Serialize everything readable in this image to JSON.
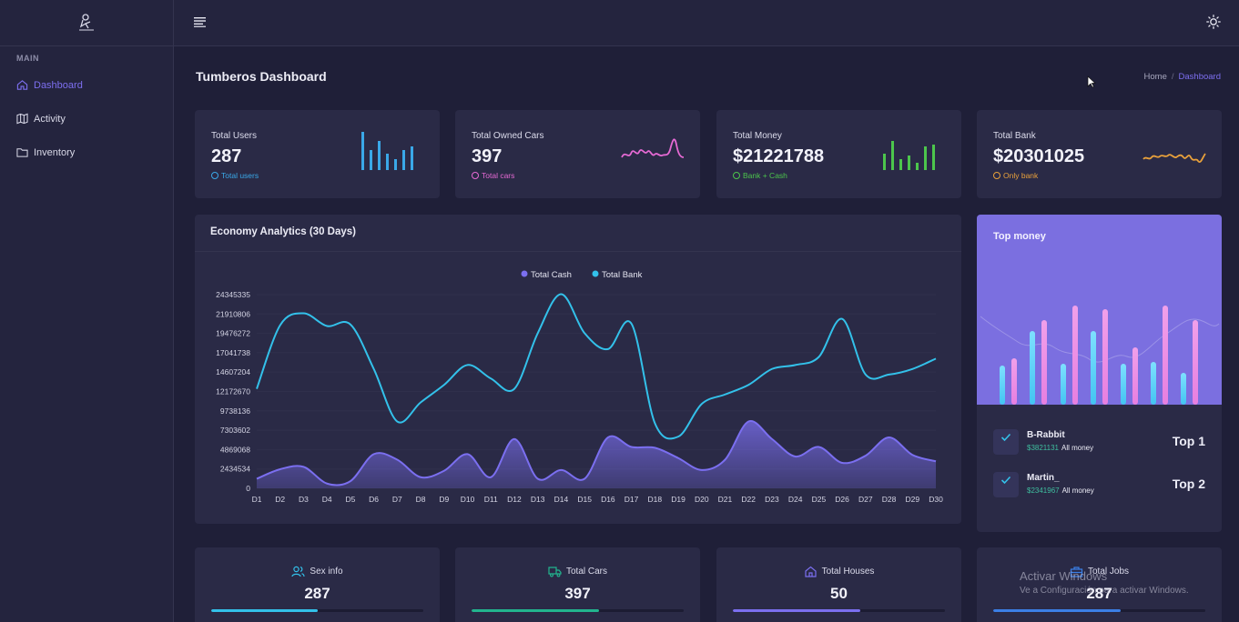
{
  "sidebar": {
    "section": "MAIN",
    "items": [
      {
        "label": "Dashboard",
        "icon": "home-icon",
        "active": true
      },
      {
        "label": "Activity",
        "icon": "map-icon"
      },
      {
        "label": "Inventory",
        "icon": "folder-icon"
      }
    ]
  },
  "header": {
    "title": "Tumberos Dashboard",
    "breadcrumb": [
      "Home",
      "Dashboard"
    ]
  },
  "stats": [
    {
      "label": "Total Users",
      "value": "287",
      "sub": "Total users",
      "color": "#3aa8e8",
      "spark": "bars"
    },
    {
      "label": "Total Owned Cars",
      "value": "397",
      "sub": "Total cars",
      "color": "#e66ad4",
      "spark": "line"
    },
    {
      "label": "Total Money",
      "value": "$21221788",
      "sub": "Bank + Cash",
      "color": "#4cc64c",
      "spark": "bars"
    },
    {
      "label": "Total Bank",
      "value": "$20301025",
      "sub": "Only bank",
      "color": "#e9a13b",
      "spark": "line"
    }
  ],
  "economy": {
    "title": "Economy Analytics (30 Days)"
  },
  "chart_data": {
    "type": "line",
    "categories": [
      "D1",
      "D2",
      "D3",
      "D4",
      "D5",
      "D6",
      "D7",
      "D8",
      "D9",
      "D10",
      "D11",
      "D12",
      "D13",
      "D14",
      "D15",
      "D16",
      "D17",
      "D18",
      "D19",
      "D20",
      "D21",
      "D22",
      "D23",
      "D24",
      "D25",
      "D26",
      "D27",
      "D28",
      "D29",
      "D30"
    ],
    "yticks": [
      "24345335",
      "21910806",
      "19476272",
      "17041738",
      "14607204",
      "12172670",
      "9738136",
      "7303602",
      "4869068",
      "2434534",
      "0"
    ],
    "ylim": [
      0,
      24345335
    ],
    "legend_position": "top-center",
    "series": [
      {
        "name": "Total Cash",
        "color": "#7b6ff0",
        "fill": true,
        "values": [
          1200000,
          2400000,
          2700000,
          600000,
          900000,
          4300000,
          3600000,
          1400000,
          2200000,
          4300000,
          1400000,
          6200000,
          1200000,
          2300000,
          1200000,
          6400000,
          5200000,
          5100000,
          3800000,
          2300000,
          3600000,
          8400000,
          6200000,
          4000000,
          5200000,
          3200000,
          4100000,
          6400000,
          4200000,
          3400000
        ]
      },
      {
        "name": "Total Bank",
        "color": "#33c1ea",
        "fill": false,
        "values": [
          12500000,
          20500000,
          22000000,
          20400000,
          20600000,
          15000000,
          8400000,
          10800000,
          13000000,
          15500000,
          13800000,
          12500000,
          19500000,
          24400000,
          19500000,
          17500000,
          20700000,
          8200000,
          6500000,
          10600000,
          11800000,
          13000000,
          15000000,
          15500000,
          16500000,
          21300000,
          14300000,
          14300000,
          15000000,
          16300000
        ]
      }
    ]
  },
  "top_money": {
    "title": "Top money",
    "players": [
      {
        "name": "B-Rabbit",
        "amount": "$3821131",
        "suffix": "All money",
        "rank": "Top 1"
      },
      {
        "name": "Martin_",
        "amount": "$2341967",
        "suffix": "All money",
        "rank": "Top 2"
      }
    ]
  },
  "bottom_stats": [
    {
      "label": "Sex info",
      "value": "287",
      "icon": "users-icon",
      "color": "#33c1ea",
      "progress": 0.5
    },
    {
      "label": "Total Cars",
      "value": "397",
      "icon": "truck-icon",
      "color": "#22b58e",
      "progress": 0.6
    },
    {
      "label": "Total Houses",
      "value": "50",
      "icon": "house-icon",
      "color": "#7b6ff0",
      "progress": 0.6
    },
    {
      "label": "Total Jobs",
      "value": "287",
      "icon": "briefcase-icon",
      "color": "#3b7fe6",
      "progress": 0.6
    }
  ],
  "watermark": {
    "line1": "Activar Windows",
    "line2": "Ve a Configuración para activar Windows."
  }
}
